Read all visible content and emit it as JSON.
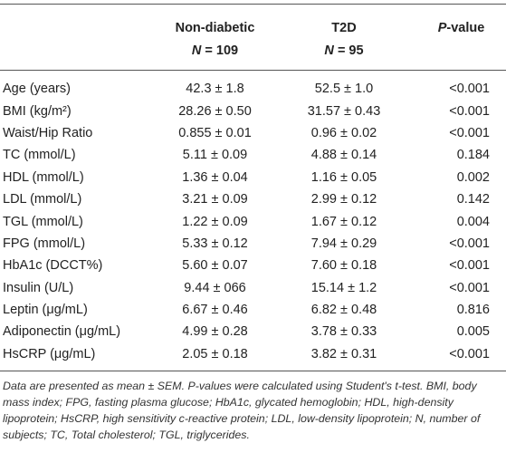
{
  "table": {
    "header": [
      {
        "name": "Non-diabetic",
        "n_symbol": "N",
        "n_value": "= 109"
      },
      {
        "name": "T2D",
        "n_symbol": "N",
        "n_value": "= 95"
      },
      {
        "italic": "P",
        "rest": "-value"
      }
    ],
    "rows": [
      [
        "Age (years)",
        "42.3 ± 1.8",
        "52.5 ± 1.0",
        "<0.001"
      ],
      [
        "BMI (kg/m²)",
        "28.26 ± 0.50",
        "31.57 ± 0.43",
        "<0.001"
      ],
      [
        "Waist/Hip Ratio",
        "0.855 ± 0.01",
        "0.96 ± 0.02",
        "<0.001"
      ],
      [
        "TC (mmol/L)",
        "5.11 ± 0.09",
        "4.88 ± 0.14",
        "0.184"
      ],
      [
        "HDL (mmol/L)",
        "1.36 ± 0.04",
        "1.16 ± 0.05",
        "0.002"
      ],
      [
        "LDL (mmol/L)",
        "3.21 ± 0.09",
        "2.99 ± 0.12",
        "0.142"
      ],
      [
        "TGL (mmol/L)",
        "1.22 ± 0.09",
        "1.67 ± 0.12",
        "0.004"
      ],
      [
        "FPG (mmol/L)",
        "5.33 ± 0.12",
        "7.94 ± 0.29",
        "<0.001"
      ],
      [
        "HbA1c (DCCT%)",
        "5.60 ± 0.07",
        "7.60 ± 0.18",
        "<0.001"
      ],
      [
        "Insulin (U/L)",
        "9.44 ± 066",
        "15.14 ± 1.2",
        "<0.001"
      ],
      [
        "Leptin (μg/mL)",
        "6.67 ± 0.46",
        "6.82 ± 0.48",
        "0.816"
      ],
      [
        "Adiponectin (μg/mL)",
        "4.99 ± 0.28",
        "3.78 ± 0.33",
        "0.005"
      ],
      [
        "HsCRP (μg/mL)",
        "2.05 ± 0.18",
        "3.82 ± 0.31",
        "<0.001"
      ]
    ]
  },
  "footnote": "Data are presented as mean ± SEM. P-values were calculated using Student's t-test. BMI, body mass index; FPG, fasting plasma glucose; HbA1c, glycated hemoglobin; HDL, high-density lipoprotein; HsCRP, high sensitivity c-reactive protein; LDL, low-density lipoprotein; N, number of subjects; TC, Total cholesterol; TGL, triglycerides."
}
